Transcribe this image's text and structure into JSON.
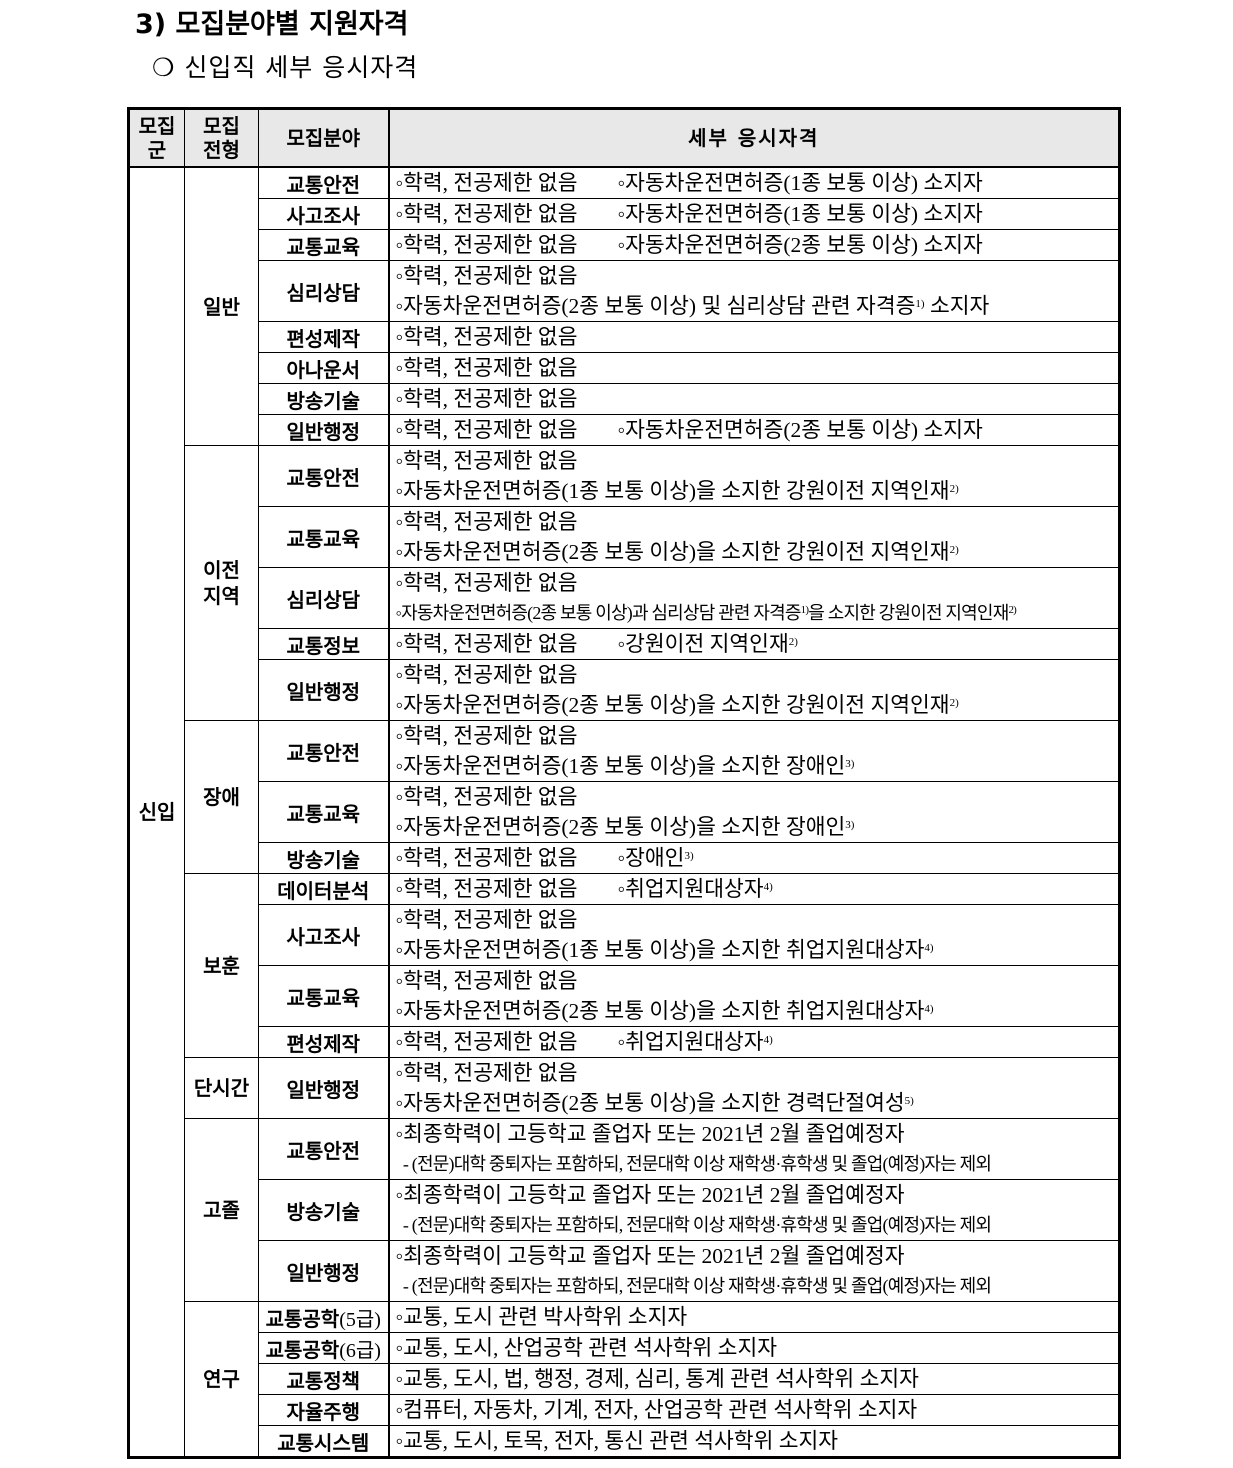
{
  "heading": "3) 모집분야별 지원자격",
  "subheading": "❍ 신입직 세부 응시자격",
  "table": {
    "headers": [
      "모집\n군",
      "모집\n전형",
      "모집분야",
      "세부 응시자격"
    ],
    "group": "신입",
    "sections": [
      {
        "name": "일반",
        "rows": [
          {
            "field": "교통안전",
            "lines": [
              {
                "text": "◦학력, 전공제한 없음",
                "text2": "◦자동차운전면허증(1종 보통 이상) 소지자"
              }
            ]
          },
          {
            "field": "사고조사",
            "lines": [
              {
                "text": "◦학력, 전공제한 없음",
                "text2": "◦자동차운전면허증(1종 보통 이상) 소지자"
              }
            ]
          },
          {
            "field": "교통교육",
            "lines": [
              {
                "text": "◦학력, 전공제한 없음",
                "text2": "◦자동차운전면허증(2종 보통 이상) 소지자"
              }
            ]
          },
          {
            "field": "심리상담",
            "lines": [
              {
                "text": "◦학력, 전공제한 없음"
              },
              {
                "text": "◦자동차운전면허증(2종 보통 이상) 및 심리상담 관련 자격증",
                "sup": "1)",
                "after": " 소지자"
              }
            ]
          },
          {
            "field": "편성제작",
            "lines": [
              {
                "text": "◦학력, 전공제한 없음"
              }
            ]
          },
          {
            "field": "아나운서",
            "lines": [
              {
                "text": "◦학력, 전공제한 없음"
              }
            ]
          },
          {
            "field": "방송기술",
            "lines": [
              {
                "text": "◦학력, 전공제한 없음"
              }
            ]
          },
          {
            "field": "일반행정",
            "lines": [
              {
                "text": "◦학력, 전공제한 없음",
                "text2": "◦자동차운전면허증(2종 보통 이상) 소지자"
              }
            ]
          }
        ]
      },
      {
        "name": "이전\n지역",
        "rows": [
          {
            "field": "교통안전",
            "lines": [
              {
                "text": "◦학력, 전공제한 없음"
              },
              {
                "text": "◦자동차운전면허증(1종 보통 이상)을 소지한 강원이전 지역인재",
                "sup": "2)"
              }
            ]
          },
          {
            "field": "교통교육",
            "lines": [
              {
                "text": "◦학력, 전공제한 없음"
              },
              {
                "text": "◦자동차운전면허증(2종 보통 이상)을 소지한 강원이전 지역인재",
                "sup": "2)"
              }
            ]
          },
          {
            "field": "심리상담",
            "lines": [
              {
                "text": "◦학력, 전공제한 없음"
              },
              {
                "text": "◦자동차운전면허증(2종 보통 이상)과 심리상담 관련 자격증",
                "sup": "1)",
                "after": "을 소지한 강원이전 지역인재",
                "sup2": "2)",
                "dense": true
              }
            ]
          },
          {
            "field": "교통정보",
            "lines": [
              {
                "text": "◦학력, 전공제한 없음",
                "text2": "◦강원이전 지역인재",
                "sup": "2)"
              }
            ]
          },
          {
            "field": "일반행정",
            "lines": [
              {
                "text": "◦학력, 전공제한 없음"
              },
              {
                "text": "◦자동차운전면허증(2종 보통 이상)을 소지한 강원이전 지역인재",
                "sup": "2)"
              }
            ]
          }
        ]
      },
      {
        "name": "장애",
        "rows": [
          {
            "field": "교통안전",
            "lines": [
              {
                "text": "◦학력, 전공제한 없음"
              },
              {
                "text": "◦자동차운전면허증(1종 보통 이상)을 소지한 장애인",
                "sup": "3)"
              }
            ]
          },
          {
            "field": "교통교육",
            "lines": [
              {
                "text": "◦학력, 전공제한 없음"
              },
              {
                "text": "◦자동차운전면허증(2종 보통 이상)을 소지한 장애인",
                "sup": "3)"
              }
            ]
          },
          {
            "field": "방송기술",
            "lines": [
              {
                "text": "◦학력, 전공제한 없음",
                "text2": "◦장애인",
                "sup": "3)"
              }
            ]
          }
        ]
      },
      {
        "name": "보훈",
        "rows": [
          {
            "field": "데이터분석",
            "lines": [
              {
                "text": "◦학력, 전공제한 없음",
                "text2": "◦취업지원대상자",
                "sup": "4)"
              }
            ]
          },
          {
            "field": "사고조사",
            "lines": [
              {
                "text": "◦학력, 전공제한 없음"
              },
              {
                "text": "◦자동차운전면허증(1종 보통 이상)을 소지한 취업지원대상자",
                "sup": "4)"
              }
            ]
          },
          {
            "field": "교통교육",
            "lines": [
              {
                "text": "◦학력, 전공제한 없음"
              },
              {
                "text": "◦자동차운전면허증(2종 보통 이상)을 소지한 취업지원대상자",
                "sup": "4)"
              }
            ]
          },
          {
            "field": "편성제작",
            "lines": [
              {
                "text": "◦학력, 전공제한 없음",
                "text2": "◦취업지원대상자",
                "sup": "4)"
              }
            ]
          }
        ]
      },
      {
        "name": "단시간",
        "rows": [
          {
            "field": "일반행정",
            "lines": [
              {
                "text": "◦학력, 전공제한 없음"
              },
              {
                "text": "◦자동차운전면허증(2종 보통 이상)을 소지한 경력단절여성",
                "sup": "5)"
              }
            ]
          }
        ]
      },
      {
        "name": "고졸",
        "rows": [
          {
            "field": "교통안전",
            "lines": [
              {
                "text": "◦최종학력이 고등학교 졸업자 또는 2021년 2월 졸업예정자"
              },
              {
                "text": "  - (전문)대학 중퇴자는 포함하되, 전문대학 이상 재학생·휴학생 및 졸업(예정)자는 제외",
                "dense": true
              }
            ]
          },
          {
            "field": "방송기술",
            "lines": [
              {
                "text": "◦최종학력이 고등학교 졸업자 또는 2021년 2월 졸업예정자"
              },
              {
                "text": "  - (전문)대학 중퇴자는 포함하되, 전문대학 이상 재학생·휴학생 및 졸업(예정)자는 제외",
                "dense": true
              }
            ]
          },
          {
            "field": "일반행정",
            "lines": [
              {
                "text": "◦최종학력이 고등학교 졸업자 또는 2021년 2월 졸업예정자"
              },
              {
                "text": "  - (전문)대학 중퇴자는 포함하되, 전문대학 이상 재학생·휴학생 및 졸업(예정)자는 제외",
                "dense": true
              }
            ]
          }
        ]
      },
      {
        "name": "연구",
        "rows": [
          {
            "field": "교통공학",
            "field_suffix": "(5급)",
            "lines": [
              {
                "text": "◦교통, 도시 관련 박사학위 소지자"
              }
            ]
          },
          {
            "field": "교통공학",
            "field_suffix": "(6급)",
            "lines": [
              {
                "text": "◦교통, 도시, 산업공학 관련 석사학위 소지자"
              }
            ]
          },
          {
            "field": "교통정책",
            "lines": [
              {
                "text": "◦교통, 도시, 법, 행정, 경제, 심리, 통계 관련 석사학위 소지자"
              }
            ]
          },
          {
            "field": "자율주행",
            "lines": [
              {
                "text": "◦컴퓨터, 자동차, 기계, 전자, 산업공학 관련 석사학위 소지자"
              }
            ]
          },
          {
            "field": "교통시스템",
            "lines": [
              {
                "text": "◦교통, 도시, 토목, 전자, 통신 관련 석사학위 소지자"
              }
            ]
          }
        ]
      }
    ]
  }
}
